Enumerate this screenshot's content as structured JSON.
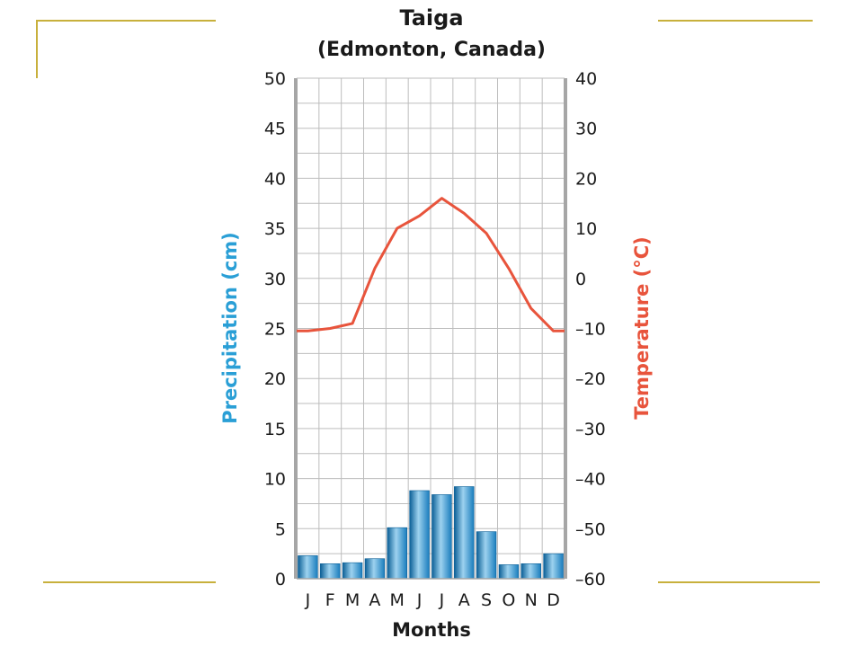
{
  "colors": {
    "precipitation": "#2a9fd6",
    "temperature": "#e8543c",
    "decoration": "#c8b03c",
    "grid": "#bdbdbd",
    "frame": "#a6a6a6"
  },
  "chart_data": {
    "type": "bar",
    "title": "Taiga",
    "subtitle": "(Edmonton, Canada)",
    "xlabel": "Months",
    "categories": [
      "J",
      "F",
      "M",
      "A",
      "M",
      "J",
      "J",
      "A",
      "S",
      "O",
      "N",
      "D"
    ],
    "grid": true,
    "y_left": {
      "label": "Precipitation (cm)",
      "range": [
        0,
        50
      ],
      "ticks": [
        0,
        5,
        10,
        15,
        20,
        25,
        30,
        35,
        40,
        45,
        50
      ],
      "tick_labels": [
        "0",
        "5",
        "10",
        "15",
        "20",
        "25",
        "30",
        "35",
        "40",
        "45",
        "50"
      ]
    },
    "y_right": {
      "label": "Temperature (°C)",
      "range": [
        -60,
        40
      ],
      "ticks": [
        -60,
        -50,
        -40,
        -30,
        -20,
        -10,
        0,
        10,
        20,
        30,
        40
      ],
      "tick_labels": [
        "–60",
        "–50",
        "–40",
        "–30",
        "–20",
        "–10",
        "0",
        "10",
        "20",
        "30",
        "40"
      ]
    },
    "series": [
      {
        "type": "bar",
        "axis": "left",
        "values": [
          2.3,
          1.5,
          1.6,
          2.0,
          5.1,
          8.8,
          8.4,
          9.2,
          4.7,
          1.4,
          1.5,
          2.5
        ]
      },
      {
        "type": "line",
        "axis": "right",
        "values": [
          -10.5,
          -10,
          -9,
          2,
          10,
          12.5,
          16,
          13,
          9,
          2,
          -6,
          -10.5
        ]
      }
    ]
  }
}
